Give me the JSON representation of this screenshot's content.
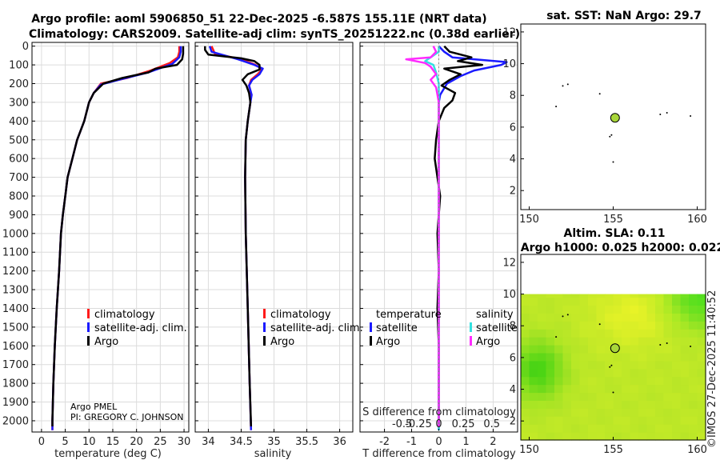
{
  "header": {
    "line1": "Argo profile: aoml 5906850_51 22-Dec-2025 -6.587S 155.11E (NRT data)",
    "line2": "Climatology: CARS2009. Satellite-adj clim: synTS_20251222.nc (0.38d earlier)"
  },
  "colors": {
    "climatology": "#ff1a1a",
    "satellite": "#1a1aff",
    "argo": "#000000",
    "sat_salinity": "#33e0e0",
    "argo_salinity": "#ff2bff",
    "ocean_green": "#b8ea2a",
    "float_marker": "#a8d63a"
  },
  "chart_data": [
    {
      "type": "line",
      "name": "temperature-profile",
      "xlabel": "temperature (deg C)",
      "ylabel": "",
      "xlim": [
        -2,
        31
      ],
      "ylim": [
        2060,
        0
      ],
      "xticks": [
        0,
        5,
        10,
        15,
        20,
        25,
        30
      ],
      "yticks": [
        0,
        100,
        200,
        300,
        400,
        500,
        600,
        700,
        800,
        900,
        1000,
        1100,
        1200,
        1300,
        1400,
        1500,
        1600,
        1700,
        1800,
        1900,
        2000
      ],
      "legend": {
        "climatology": "climatology",
        "satellite": "satellite-adj. clim.",
        "argo": "Argo"
      },
      "credit": {
        "line1": "Argo PMEL",
        "line2": "PI: GREGORY C. JOHNSON"
      },
      "series": [
        {
          "name": "climatology",
          "points": [
            [
              29,
              0
            ],
            [
              29,
              30
            ],
            [
              28.7,
              60
            ],
            [
              27,
              90
            ],
            [
              23,
              130
            ],
            [
              18,
              170
            ],
            [
              12.5,
              200
            ],
            [
              11,
              250
            ],
            [
              10,
              300
            ],
            [
              9,
              400
            ],
            [
              7.5,
              500
            ],
            [
              6.5,
              600
            ],
            [
              5.5,
              700
            ],
            [
              5,
              800
            ],
            [
              4.5,
              900
            ],
            [
              4.1,
              1000
            ],
            [
              3.7,
              1200
            ],
            [
              3.2,
              1400
            ],
            [
              2.8,
              1600
            ],
            [
              2.5,
              1800
            ],
            [
              2.3,
              2000
            ],
            [
              2.3,
              2050
            ]
          ]
        },
        {
          "name": "satellite",
          "points": [
            [
              29.3,
              0
            ],
            [
              29.3,
              30
            ],
            [
              29,
              60
            ],
            [
              27.5,
              95
            ],
            [
              22.5,
              140
            ],
            [
              17,
              175
            ],
            [
              12.5,
              205
            ],
            [
              11,
              250
            ],
            [
              10,
              300
            ],
            [
              9,
              400
            ],
            [
              7.5,
              500
            ],
            [
              6.5,
              600
            ],
            [
              5.5,
              700
            ],
            [
              5,
              800
            ],
            [
              4.5,
              900
            ],
            [
              4.1,
              1000
            ],
            [
              3.7,
              1200
            ],
            [
              3.2,
              1400
            ],
            [
              2.8,
              1600
            ],
            [
              2.5,
              1800
            ],
            [
              2.3,
              2000
            ],
            [
              2.3,
              2050
            ]
          ]
        },
        {
          "name": "argo",
          "points": [
            [
              29.8,
              0
            ],
            [
              29.8,
              40
            ],
            [
              29.6,
              70
            ],
            [
              28.5,
              100
            ],
            [
              24,
              120
            ],
            [
              22.5,
              140
            ],
            [
              17,
              170
            ],
            [
              13,
              200
            ],
            [
              11,
              250
            ],
            [
              10,
              300
            ],
            [
              9,
              400
            ],
            [
              7.5,
              500
            ],
            [
              6.5,
              600
            ],
            [
              5.5,
              700
            ],
            [
              5,
              800
            ],
            [
              4.5,
              900
            ],
            [
              4.1,
              1000
            ],
            [
              3.7,
              1200
            ],
            [
              3.2,
              1400
            ],
            [
              2.8,
              1600
            ],
            [
              2.5,
              1800
            ],
            [
              2.3,
              2000
            ],
            [
              2.3,
              2030
            ]
          ]
        }
      ]
    },
    {
      "type": "line",
      "name": "salinity-profile",
      "xlabel": "salinity",
      "xlim": [
        33.8,
        36.2
      ],
      "ylim": [
        2060,
        0
      ],
      "xticks": [
        34,
        34.5,
        35,
        35.5,
        36
      ],
      "legend": {
        "climatology": "climatology",
        "satellite": "satellite-adj. clim.",
        "argo": "Argo"
      },
      "series": [
        {
          "name": "climatology",
          "points": [
            [
              34.05,
              0
            ],
            [
              34.1,
              40
            ],
            [
              34.5,
              70
            ],
            [
              34.72,
              100
            ],
            [
              34.82,
              125
            ],
            [
              34.75,
              150
            ],
            [
              34.65,
              180
            ],
            [
              34.62,
              210
            ],
            [
              34.65,
              250
            ],
            [
              34.64,
              300
            ],
            [
              34.6,
              400
            ],
            [
              34.57,
              500
            ],
            [
              34.56,
              700
            ],
            [
              34.57,
              1000
            ],
            [
              34.6,
              1400
            ],
            [
              34.63,
              1800
            ],
            [
              34.65,
              2050
            ]
          ]
        },
        {
          "name": "satellite",
          "points": [
            [
              34.02,
              0
            ],
            [
              34.05,
              30
            ],
            [
              34.45,
              70
            ],
            [
              34.7,
              100
            ],
            [
              34.83,
              120
            ],
            [
              34.78,
              150
            ],
            [
              34.67,
              180
            ],
            [
              34.62,
              210
            ],
            [
              34.66,
              260
            ],
            [
              34.64,
              300
            ],
            [
              34.6,
              400
            ],
            [
              34.57,
              500
            ],
            [
              34.56,
              700
            ],
            [
              34.57,
              1000
            ],
            [
              34.6,
              1400
            ],
            [
              34.63,
              1800
            ],
            [
              34.65,
              2050
            ]
          ]
        },
        {
          "name": "argo",
          "points": [
            [
              33.95,
              0
            ],
            [
              33.95,
              20
            ],
            [
              34.0,
              45
            ],
            [
              34.5,
              65
            ],
            [
              34.7,
              80
            ],
            [
              34.78,
              100
            ],
            [
              34.78,
              125
            ],
            [
              34.6,
              150
            ],
            [
              34.52,
              180
            ],
            [
              34.58,
              210
            ],
            [
              34.62,
              250
            ],
            [
              34.64,
              300
            ],
            [
              34.6,
              400
            ],
            [
              34.57,
              500
            ],
            [
              34.56,
              700
            ],
            [
              34.57,
              1000
            ],
            [
              34.6,
              1400
            ],
            [
              34.63,
              1800
            ],
            [
              34.65,
              2030
            ]
          ]
        }
      ]
    },
    {
      "type": "line",
      "name": "difference-profile",
      "xlabel": "T difference from climatology",
      "xlabel_top": "S difference from climatology",
      "xlim": [
        -2.9,
        2.9
      ],
      "ylim": [
        2060,
        0
      ],
      "xticks_T": [
        -2,
        -1,
        0,
        1,
        2
      ],
      "xticks_S": [
        "-0.5",
        "-0.25",
        "0",
        "0.25",
        "0.5"
      ],
      "legend": {
        "temperature_title": "temperature",
        "salinity_title": "salinity",
        "satellite": "satellite",
        "argo": "Argo"
      },
      "series": [
        {
          "name": "T satellite",
          "points": [
            [
              0,
              0
            ],
            [
              0.2,
              30
            ],
            [
              0.5,
              60
            ],
            [
              2.5,
              85
            ],
            [
              2.3,
              100
            ],
            [
              1.3,
              130
            ],
            [
              0.8,
              160
            ],
            [
              0.3,
              200
            ],
            [
              0.05,
              260
            ],
            [
              0,
              300
            ],
            [
              0,
              2050
            ]
          ]
        },
        {
          "name": "T argo",
          "points": [
            [
              0.2,
              0
            ],
            [
              0.4,
              30
            ],
            [
              1.2,
              60
            ],
            [
              0.7,
              80
            ],
            [
              1.6,
              100
            ],
            [
              0.2,
              120
            ],
            [
              0.8,
              150
            ],
            [
              0.4,
              180
            ],
            [
              0.1,
              210
            ],
            [
              0.6,
              250
            ],
            [
              0.5,
              290
            ],
            [
              0.2,
              330
            ],
            [
              0,
              400
            ],
            [
              -0.1,
              500
            ],
            [
              -0.15,
              600
            ],
            [
              -0.05,
              700
            ],
            [
              0.05,
              800
            ],
            [
              0,
              900
            ],
            [
              -0.05,
              1000
            ],
            [
              0,
              1200
            ],
            [
              -0.05,
              1400
            ],
            [
              0,
              1600
            ],
            [
              0,
              2030
            ]
          ]
        },
        {
          "name": "S satellite",
          "points": [
            [
              0,
              0
            ],
            [
              0,
              30
            ],
            [
              -0.5,
              80
            ],
            [
              -0.2,
              100
            ],
            [
              -0.1,
              140
            ],
            [
              0,
              200
            ],
            [
              0,
              2050
            ]
          ]
        },
        {
          "name": "S argo",
          "points": [
            [
              -0.2,
              0
            ],
            [
              -0.1,
              30
            ],
            [
              -0.3,
              60
            ],
            [
              -1.2,
              70
            ],
            [
              -0.5,
              90
            ],
            [
              -0.3,
              110
            ],
            [
              -0.1,
              150
            ],
            [
              -0.3,
              180
            ],
            [
              -0.1,
              220
            ],
            [
              0,
              300
            ],
            [
              0,
              2030
            ]
          ]
        }
      ]
    },
    {
      "type": "scatter",
      "name": "sst-map",
      "title": "sat. SST: NaN Argo: 29.7",
      "xlim": [
        149.5,
        160.5
      ],
      "ylim": [
        0.8,
        12.5
      ],
      "xticks": [
        150,
        155,
        160
      ],
      "yticks": [
        2,
        4,
        6,
        8,
        10,
        12
      ],
      "float_position": [
        155.11,
        6.587
      ]
    },
    {
      "type": "heatmap",
      "name": "sla-map",
      "title_line1": "Altim. SLA: 0.11",
      "title_line2": "Argo h1000: 0.025 h2000: 0.022",
      "xlim": [
        149.5,
        160.5
      ],
      "ylim": [
        0.8,
        12.5
      ],
      "xticks": [
        150,
        155,
        160
      ],
      "yticks": [
        2,
        4,
        6,
        8,
        10,
        12
      ],
      "data_top_lat": 10,
      "float_position": [
        155.11,
        6.587
      ]
    }
  ],
  "watermark": "©IMOS 27-Dec-2025 11:40:52"
}
